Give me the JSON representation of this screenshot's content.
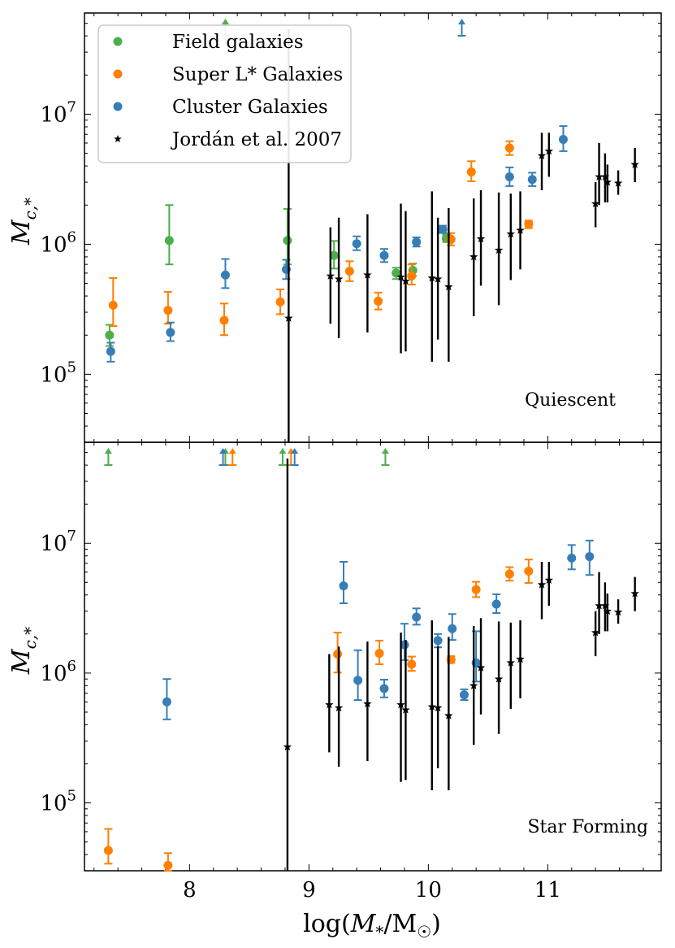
{
  "chart_data": [
    {
      "type": "scatter",
      "panel_label": "Quiescent",
      "xlabel": "log(M*/M☉)",
      "ylabel": "Mc,*",
      "xlim": [
        7.12,
        11.95
      ],
      "ylim": [
        30000,
        60000000
      ],
      "yscale": "log",
      "xticks": [
        "8",
        "9",
        "10",
        "11"
      ],
      "yticks": [
        "10^5",
        "10^6",
        "10^7"
      ],
      "legend": {
        "position": "top-left",
        "entries": [
          "Field galaxies",
          "Super L* Galaxies",
          "Cluster Galaxies",
          "Jordán et al. 2007"
        ]
      },
      "series": [
        {
          "name": "Field galaxies",
          "color": "#4daf4a",
          "points": [
            {
              "x": 7.33,
              "y": 200000,
              "lo": 165000,
              "hi": 240000
            },
            {
              "x": 7.83,
              "y": 1070000,
              "lo": 700000,
              "hi": 2000000
            },
            {
              "x": 8.82,
              "y": 1070000,
              "lo": 700000,
              "hi": 1870000
            },
            {
              "x": 9.21,
              "y": 820000,
              "lo": 650000,
              "hi": 1060000
            },
            {
              "x": 9.73,
              "y": 600000,
              "lo": 540000,
              "hi": 660000
            },
            {
              "x": 9.87,
              "y": 630000,
              "lo": 570000,
              "hi": 710000
            },
            {
              "x": 10.15,
              "y": 1110000,
              "lo": 1040000,
              "hi": 1190000
            }
          ],
          "upper_arrows": [
            8.3
          ]
        },
        {
          "name": "Super L* Galaxies",
          "color": "#ff7f00",
          "points": [
            {
              "x": 7.36,
              "y": 340000,
              "lo": 235000,
              "hi": 550000
            },
            {
              "x": 7.82,
              "y": 310000,
              "lo": 245000,
              "hi": 430000
            },
            {
              "x": 8.29,
              "y": 260000,
              "lo": 200000,
              "hi": 350000
            },
            {
              "x": 8.76,
              "y": 360000,
              "lo": 290000,
              "hi": 450000
            },
            {
              "x": 9.34,
              "y": 620000,
              "lo": 520000,
              "hi": 740000
            },
            {
              "x": 9.58,
              "y": 365000,
              "lo": 315000,
              "hi": 425000
            },
            {
              "x": 9.86,
              "y": 570000,
              "lo": 490000,
              "hi": 700000
            },
            {
              "x": 10.19,
              "y": 1090000,
              "lo": 980000,
              "hi": 1220000
            },
            {
              "x": 10.36,
              "y": 3600000,
              "lo": 3050000,
              "hi": 4350000
            },
            {
              "x": 10.68,
              "y": 5500000,
              "lo": 4850000,
              "hi": 6200000
            },
            {
              "x": 10.84,
              "y": 1430000,
              "lo": 1330000,
              "hi": 1520000
            }
          ],
          "upper_arrows": []
        },
        {
          "name": "Cluster Galaxies",
          "color": "#377eb8",
          "points": [
            {
              "x": 7.34,
              "y": 150000,
              "lo": 125000,
              "hi": 175000
            },
            {
              "x": 7.84,
              "y": 210000,
              "lo": 180000,
              "hi": 250000
            },
            {
              "x": 8.3,
              "y": 580000,
              "lo": 460000,
              "hi": 770000
            },
            {
              "x": 8.81,
              "y": 640000,
              "lo": 540000,
              "hi": 760000
            },
            {
              "x": 9.4,
              "y": 1010000,
              "lo": 900000,
              "hi": 1150000
            },
            {
              "x": 9.63,
              "y": 820000,
              "lo": 730000,
              "hi": 920000
            },
            {
              "x": 9.9,
              "y": 1040000,
              "lo": 960000,
              "hi": 1130000
            },
            {
              "x": 10.12,
              "y": 1300000,
              "lo": 1220000,
              "hi": 1390000
            },
            {
              "x": 10.68,
              "y": 3300000,
              "lo": 2800000,
              "hi": 3900000
            },
            {
              "x": 10.87,
              "y": 3150000,
              "lo": 2800000,
              "hi": 3550000
            },
            {
              "x": 11.13,
              "y": 6400000,
              "lo": 5200000,
              "hi": 8100000
            }
          ],
          "upper_arrows": [
            10.28
          ]
        },
        {
          "name": "Jordán et al. 2007",
          "color": "#000000",
          "points": [
            {
              "x": 8.83,
              "y": 270000,
              "lo": 30000,
              "hi": 45000000
            },
            {
              "x": 9.18,
              "y": 570000,
              "lo": 245000,
              "hi": 1350000
            },
            {
              "x": 9.25,
              "y": 540000,
              "lo": 190000,
              "hi": 1600000
            },
            {
              "x": 9.49,
              "y": 580000,
              "lo": 210000,
              "hi": 1700000
            },
            {
              "x": 9.77,
              "y": 560000,
              "lo": 145000,
              "hi": 2050000
            },
            {
              "x": 9.81,
              "y": 520000,
              "lo": 150000,
              "hi": 1800000
            },
            {
              "x": 10.03,
              "y": 550000,
              "lo": 125000,
              "hi": 2550000
            },
            {
              "x": 10.08,
              "y": 540000,
              "lo": 185000,
              "hi": 1600000
            },
            {
              "x": 10.17,
              "y": 470000,
              "lo": 125000,
              "hi": 1900000
            },
            {
              "x": 10.38,
              "y": 800000,
              "lo": 280000,
              "hi": 2250000
            },
            {
              "x": 10.44,
              "y": 1100000,
              "lo": 480000,
              "hi": 2600000
            },
            {
              "x": 10.59,
              "y": 900000,
              "lo": 340000,
              "hi": 2500000
            },
            {
              "x": 10.69,
              "y": 1200000,
              "lo": 530000,
              "hi": 2450000
            },
            {
              "x": 10.77,
              "y": 1280000,
              "lo": 640000,
              "hi": 2550000
            },
            {
              "x": 10.95,
              "y": 4800000,
              "lo": 2600000,
              "hi": 7200000
            },
            {
              "x": 11.01,
              "y": 5200000,
              "lo": 3300000,
              "hi": 7200000
            },
            {
              "x": 11.4,
              "y": 2050000,
              "lo": 1350000,
              "hi": 3000000
            },
            {
              "x": 11.43,
              "y": 3300000,
              "lo": 2000000,
              "hi": 6000000
            },
            {
              "x": 11.48,
              "y": 3300000,
              "lo": 2100000,
              "hi": 5000000
            },
            {
              "x": 11.5,
              "y": 3000000,
              "lo": 2100000,
              "hi": 4100000
            },
            {
              "x": 11.59,
              "y": 2950000,
              "lo": 2400000,
              "hi": 3700000
            },
            {
              "x": 11.73,
              "y": 4100000,
              "lo": 3000000,
              "hi": 5500000
            }
          ],
          "upper_arrows": []
        }
      ]
    },
    {
      "type": "scatter",
      "panel_label": "Star Forming",
      "xlabel": "log(M*/M☉)",
      "ylabel": "Mc,*",
      "xlim": [
        7.12,
        11.95
      ],
      "ylim": [
        30000,
        60000000
      ],
      "yscale": "log",
      "xticks": [
        "8",
        "9",
        "10",
        "11"
      ],
      "yticks": [
        "10^5",
        "10^6",
        "10^7"
      ],
      "series": [
        {
          "name": "Field galaxies",
          "color": "#4daf4a",
          "points": [],
          "upper_arrows": [
            7.32,
            8.3,
            8.78,
            9.64
          ]
        },
        {
          "name": "Super L* Galaxies",
          "color": "#ff7f00",
          "points": [
            {
              "x": 7.32,
              "y": 43000,
              "lo": 34000,
              "hi": 63000
            },
            {
              "x": 7.82,
              "y": 33000,
              "lo": 29000,
              "hi": 41000
            },
            {
              "x": 9.24,
              "y": 1400000,
              "lo": 1010000,
              "hi": 2050000
            },
            {
              "x": 9.59,
              "y": 1420000,
              "lo": 1170000,
              "hi": 1780000
            },
            {
              "x": 9.86,
              "y": 1170000,
              "lo": 1040000,
              "hi": 1340000
            },
            {
              "x": 10.19,
              "y": 1270000,
              "lo": 1200000,
              "hi": 1350000
            },
            {
              "x": 10.4,
              "y": 4400000,
              "lo": 3850000,
              "hi": 5050000
            },
            {
              "x": 10.68,
              "y": 5800000,
              "lo": 5150000,
              "hi": 6550000
            },
            {
              "x": 10.84,
              "y": 6100000,
              "lo": 4950000,
              "hi": 7500000
            }
          ],
          "upper_arrows": [
            8.36,
            8.85
          ]
        },
        {
          "name": "Cluster Galaxies",
          "color": "#377eb8",
          "points": [
            {
              "x": 7.81,
              "y": 600000,
              "lo": 440000,
              "hi": 900000
            },
            {
              "x": 9.29,
              "y": 4700000,
              "lo": 3450000,
              "hi": 7200000
            },
            {
              "x": 9.41,
              "y": 880000,
              "lo": 620000,
              "hi": 1500000
            },
            {
              "x": 9.63,
              "y": 760000,
              "lo": 650000,
              "hi": 890000
            },
            {
              "x": 9.8,
              "y": 1650000,
              "lo": 1260000,
              "hi": 2400000
            },
            {
              "x": 9.9,
              "y": 2700000,
              "lo": 2360000,
              "hi": 3150000
            },
            {
              "x": 10.08,
              "y": 1780000,
              "lo": 1580000,
              "hi": 2000000
            },
            {
              "x": 10.2,
              "y": 2200000,
              "lo": 1800000,
              "hi": 2850000
            },
            {
              "x": 10.3,
              "y": 680000,
              "lo": 620000,
              "hi": 750000
            },
            {
              "x": 10.4,
              "y": 1200000,
              "lo": 860000,
              "hi": 2100000
            },
            {
              "x": 10.57,
              "y": 3400000,
              "lo": 2900000,
              "hi": 4050000
            },
            {
              "x": 11.2,
              "y": 7700000,
              "lo": 6300000,
              "hi": 9700000
            },
            {
              "x": 11.35,
              "y": 7900000,
              "lo": 5700000,
              "hi": 10500000
            }
          ],
          "upper_arrows": [
            8.28,
            8.88
          ]
        },
        {
          "name": "Jordán et al. 2007",
          "color": "#000000",
          "points": [
            {
              "x": 8.82,
              "y": 270000,
              "lo": 30000,
              "hi": 45000000
            },
            {
              "x": 9.17,
              "y": 570000,
              "lo": 245000,
              "hi": 1400000
            },
            {
              "x": 9.25,
              "y": 540000,
              "lo": 190000,
              "hi": 1600000
            },
            {
              "x": 9.49,
              "y": 580000,
              "lo": 210000,
              "hi": 1750000
            },
            {
              "x": 9.77,
              "y": 570000,
              "lo": 145000,
              "hi": 2050000
            },
            {
              "x": 9.81,
              "y": 520000,
              "lo": 150000,
              "hi": 1800000
            },
            {
              "x": 10.03,
              "y": 550000,
              "lo": 125000,
              "hi": 2550000
            },
            {
              "x": 10.08,
              "y": 540000,
              "lo": 185000,
              "hi": 1600000
            },
            {
              "x": 10.17,
              "y": 470000,
              "lo": 125000,
              "hi": 1900000
            },
            {
              "x": 10.38,
              "y": 800000,
              "lo": 280000,
              "hi": 2300000
            },
            {
              "x": 10.44,
              "y": 1100000,
              "lo": 480000,
              "hi": 2650000
            },
            {
              "x": 10.59,
              "y": 900000,
              "lo": 340000,
              "hi": 2500000
            },
            {
              "x": 10.69,
              "y": 1200000,
              "lo": 530000,
              "hi": 2450000
            },
            {
              "x": 10.77,
              "y": 1280000,
              "lo": 640000,
              "hi": 2550000
            },
            {
              "x": 10.95,
              "y": 4800000,
              "lo": 2600000,
              "hi": 7200000
            },
            {
              "x": 11.01,
              "y": 5200000,
              "lo": 3300000,
              "hi": 7200000
            },
            {
              "x": 11.4,
              "y": 2050000,
              "lo": 1350000,
              "hi": 3000000
            },
            {
              "x": 11.43,
              "y": 3300000,
              "lo": 2000000,
              "hi": 6000000
            },
            {
              "x": 11.48,
              "y": 3300000,
              "lo": 2100000,
              "hi": 5000000
            },
            {
              "x": 11.5,
              "y": 3000000,
              "lo": 2100000,
              "hi": 4100000
            },
            {
              "x": 11.59,
              "y": 2950000,
              "lo": 2400000,
              "hi": 3700000
            },
            {
              "x": 11.73,
              "y": 4100000,
              "lo": 3000000,
              "hi": 5500000
            }
          ],
          "upper_arrows": []
        }
      ]
    }
  ]
}
